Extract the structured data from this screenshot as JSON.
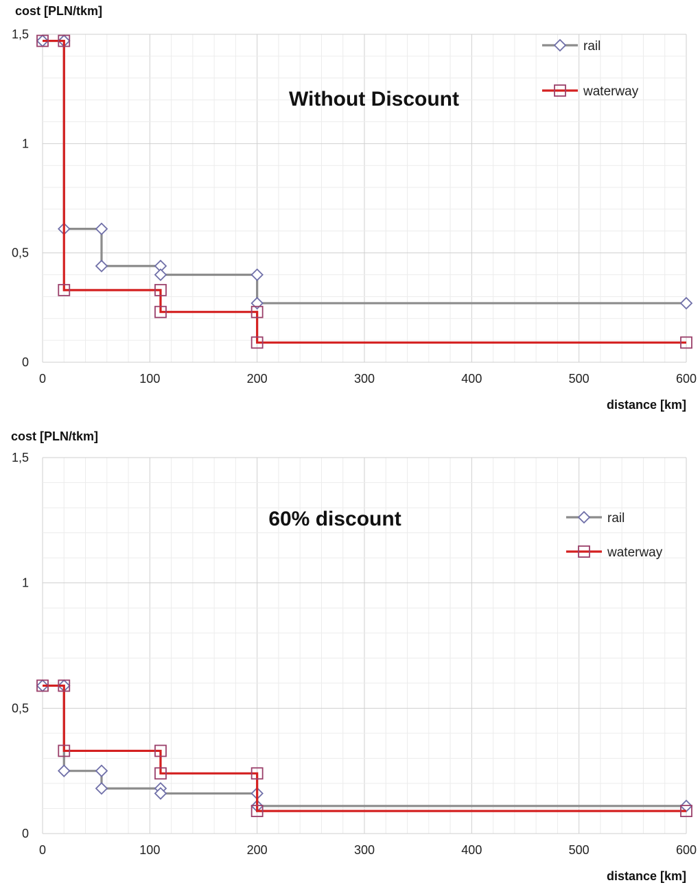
{
  "chart_data": [
    {
      "type": "line",
      "title": "Without Discount",
      "ylabel": "cost [PLN/tkm]",
      "xlabel": "distance [km]",
      "xlim": [
        0,
        600
      ],
      "ylim": [
        0,
        1.5
      ],
      "x_ticks": [
        0,
        100,
        200,
        300,
        400,
        500,
        600
      ],
      "x_tick_labels": [
        "0",
        "100",
        "200",
        "300",
        "400",
        "500",
        "600"
      ],
      "y_ticks": [
        0,
        0.5,
        1,
        1.5
      ],
      "y_tick_labels": [
        "0",
        "0,5",
        "1",
        "1,5"
      ],
      "grid": true,
      "legend_position": "top-right",
      "series": [
        {
          "name": "rail",
          "color": "#8c8c8c",
          "marker": "diamond",
          "x": [
            0,
            20,
            20,
            55,
            55,
            110,
            110,
            200,
            200,
            600
          ],
          "y": [
            1.47,
            1.47,
            0.61,
            0.61,
            0.44,
            0.44,
            0.4,
            0.4,
            0.27,
            0.27
          ]
        },
        {
          "name": "waterway",
          "color": "#d42020",
          "marker": "square",
          "x": [
            0,
            20,
            20,
            110,
            110,
            200,
            200,
            600
          ],
          "y": [
            1.47,
            1.47,
            0.33,
            0.33,
            0.23,
            0.23,
            0.09,
            0.09
          ]
        }
      ]
    },
    {
      "type": "line",
      "title": "60% discount",
      "ylabel": "cost [PLN/tkm]",
      "xlabel": "distance [km]",
      "xlim": [
        0,
        600
      ],
      "ylim": [
        0,
        1.5
      ],
      "x_ticks": [
        0,
        100,
        200,
        300,
        400,
        500,
        600
      ],
      "x_tick_labels": [
        "0",
        "100",
        "200",
        "300",
        "400",
        "500",
        "600"
      ],
      "y_ticks": [
        0,
        0.5,
        1,
        1.5
      ],
      "y_tick_labels": [
        "0",
        "0,5",
        "1",
        "1,5"
      ],
      "grid": true,
      "legend_position": "top-right",
      "series": [
        {
          "name": "rail",
          "color": "#8c8c8c",
          "marker": "diamond",
          "x": [
            0,
            20,
            20,
            55,
            55,
            110,
            110,
            200,
            200,
            600
          ],
          "y": [
            0.59,
            0.59,
            0.25,
            0.25,
            0.18,
            0.18,
            0.16,
            0.16,
            0.11,
            0.11
          ]
        },
        {
          "name": "waterway",
          "color": "#d42020",
          "marker": "square",
          "x": [
            0,
            20,
            20,
            110,
            110,
            200,
            200,
            600
          ],
          "y": [
            0.59,
            0.59,
            0.33,
            0.33,
            0.24,
            0.24,
            0.09,
            0.09
          ]
        }
      ]
    }
  ]
}
